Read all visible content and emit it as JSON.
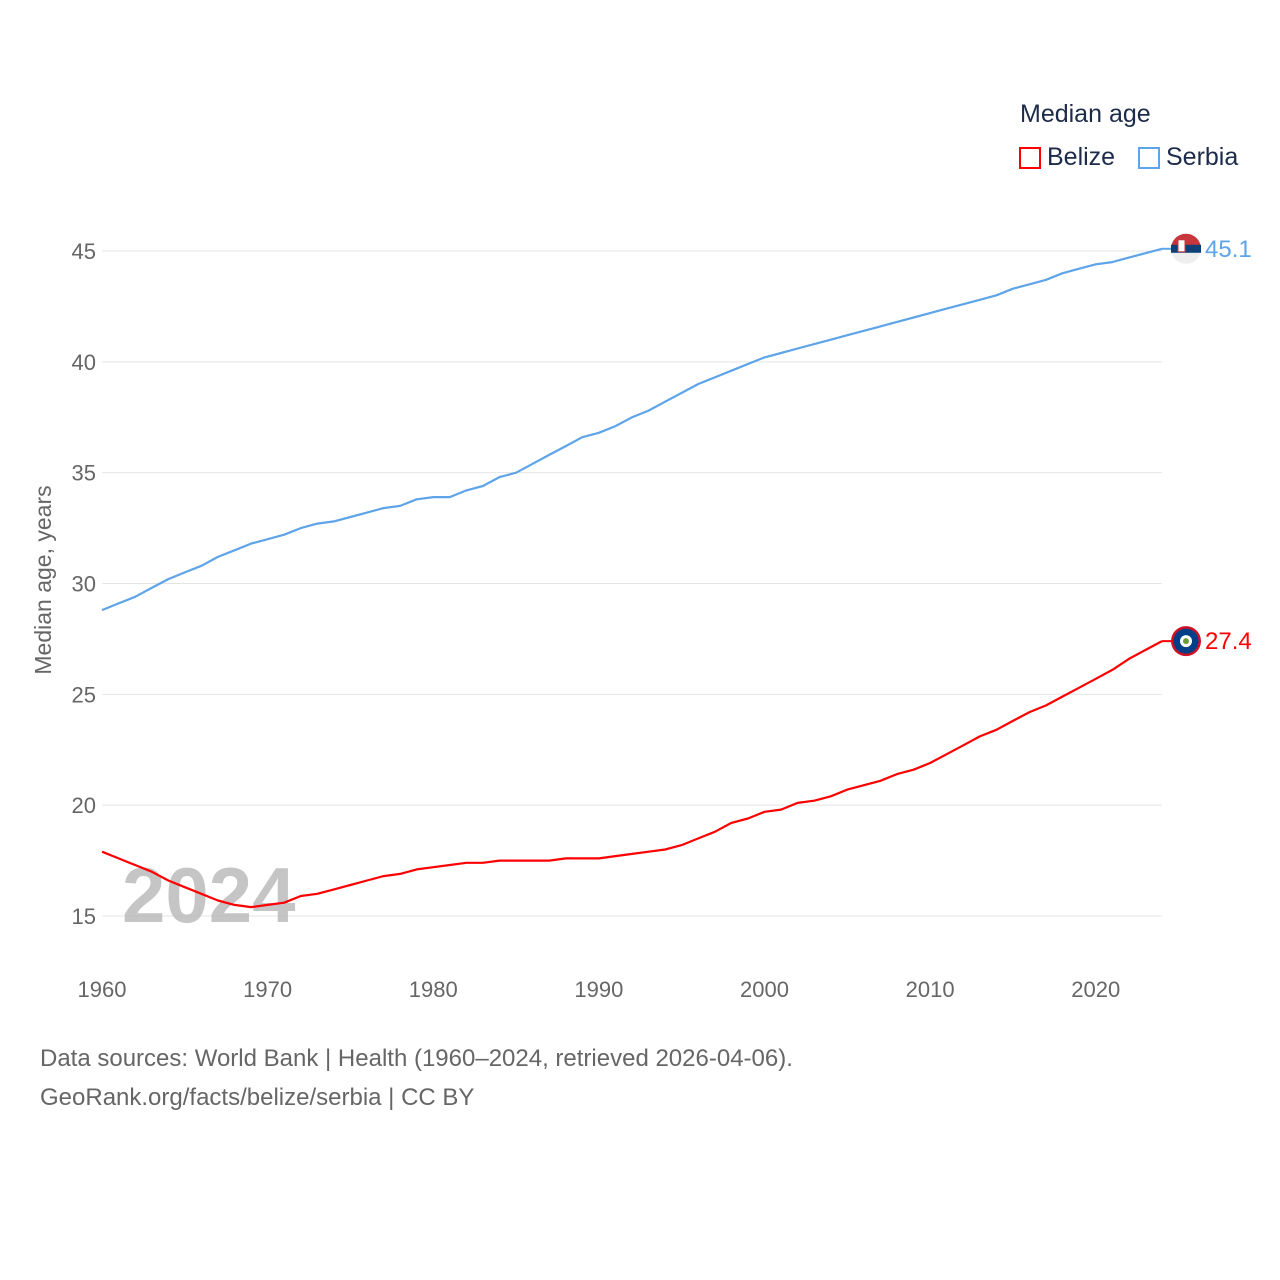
{
  "chart_data": {
    "type": "line",
    "title": "Median age",
    "xlabel": "",
    "ylabel": "Median age, years",
    "xlim": [
      1960,
      2024
    ],
    "ylim": [
      13,
      47
    ],
    "yticks": [
      15,
      20,
      25,
      30,
      35,
      40,
      45
    ],
    "xticks": [
      1960,
      1970,
      1980,
      1990,
      2000,
      2010,
      2020
    ],
    "grid": true,
    "legend_placement": "top-right",
    "year_watermark": "2024",
    "x": [
      1960,
      1961,
      1962,
      1963,
      1964,
      1965,
      1966,
      1967,
      1968,
      1969,
      1970,
      1971,
      1972,
      1973,
      1974,
      1975,
      1976,
      1977,
      1978,
      1979,
      1980,
      1981,
      1982,
      1983,
      1984,
      1985,
      1986,
      1987,
      1988,
      1989,
      1990,
      1991,
      1992,
      1993,
      1994,
      1995,
      1996,
      1997,
      1998,
      1999,
      2000,
      2001,
      2002,
      2003,
      2004,
      2005,
      2006,
      2007,
      2008,
      2009,
      2010,
      2011,
      2012,
      2013,
      2014,
      2015,
      2016,
      2017,
      2018,
      2019,
      2020,
      2021,
      2022,
      2023,
      2024
    ],
    "series": [
      {
        "name": "Belize",
        "color": "#ff0000",
        "end_label": "27.4",
        "values": [
          17.9,
          17.6,
          17.3,
          17.0,
          16.6,
          16.3,
          16.0,
          15.7,
          15.5,
          15.4,
          15.5,
          15.6,
          15.9,
          16.0,
          16.2,
          16.4,
          16.6,
          16.8,
          16.9,
          17.1,
          17.2,
          17.3,
          17.4,
          17.4,
          17.5,
          17.5,
          17.5,
          17.5,
          17.6,
          17.6,
          17.6,
          17.7,
          17.8,
          17.9,
          18.0,
          18.2,
          18.5,
          18.8,
          19.2,
          19.4,
          19.7,
          19.8,
          20.1,
          20.2,
          20.4,
          20.7,
          20.9,
          21.1,
          21.4,
          21.6,
          21.9,
          22.3,
          22.7,
          23.1,
          23.4,
          23.8,
          24.2,
          24.5,
          24.9,
          25.3,
          25.7,
          26.1,
          26.6,
          27.0,
          27.4
        ]
      },
      {
        "name": "Serbia",
        "color": "#5ea4e8",
        "end_label": "45.1",
        "values": [
          28.8,
          29.1,
          29.4,
          29.8,
          30.2,
          30.5,
          30.8,
          31.2,
          31.5,
          31.8,
          32.0,
          32.2,
          32.5,
          32.7,
          32.8,
          33.0,
          33.2,
          33.4,
          33.5,
          33.8,
          33.9,
          33.9,
          34.2,
          34.4,
          34.8,
          35.0,
          35.4,
          35.8,
          36.2,
          36.6,
          36.8,
          37.1,
          37.5,
          37.8,
          38.2,
          38.6,
          39.0,
          39.3,
          39.6,
          39.9,
          40.2,
          40.4,
          40.6,
          40.8,
          41.0,
          41.2,
          41.4,
          41.6,
          41.8,
          42.0,
          42.2,
          42.4,
          42.6,
          42.8,
          43.0,
          43.3,
          43.5,
          43.7,
          44.0,
          44.2,
          44.4,
          44.5,
          44.7,
          44.9,
          45.1
        ]
      }
    ]
  },
  "footer": {
    "line1": "Data sources: World Bank | Health (1960–2024, retrieved 2026-04-06).",
    "line2": "GeoRank.org/facts/belize/serbia | CC BY"
  }
}
